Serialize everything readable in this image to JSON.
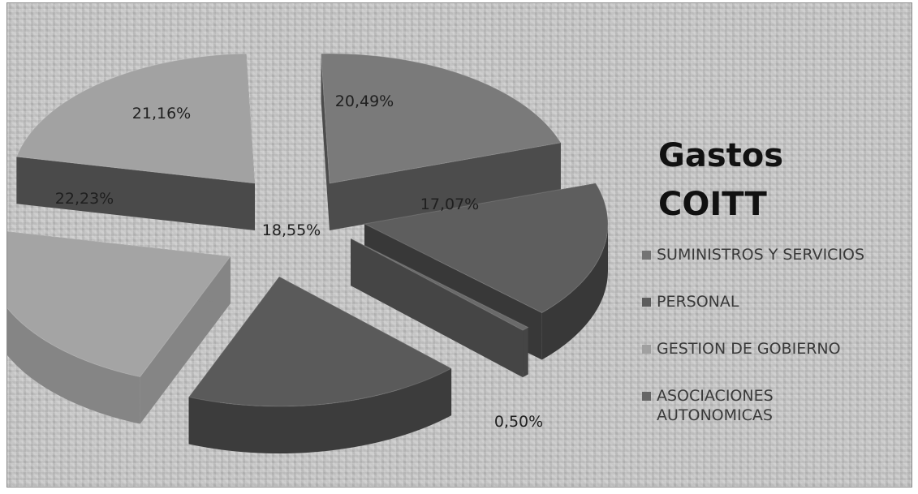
{
  "chart_data": {
    "type": "pie",
    "title_lines": [
      "Gastos",
      "COITT"
    ],
    "legend_position": "right",
    "slices": [
      {
        "label": "SUMINISTROS Y SERVICIOS",
        "value": 20.49,
        "value_label": "20,49%"
      },
      {
        "label": "",
        "value": 17.07,
        "value_label": "17,07%"
      },
      {
        "label": "ASOCIACIONES AUTONOMICAS",
        "value": 0.5,
        "value_label": "0,50%"
      },
      {
        "label": "PERSONAL",
        "value": 18.55,
        "value_label": "18,55%"
      },
      {
        "label": "",
        "value": 22.23,
        "value_label": "22,23%"
      },
      {
        "label": "GESTION DE GOBIERNO",
        "value": 21.16,
        "value_label": "21,16%"
      }
    ],
    "legend": [
      {
        "label": "SUMINISTROS Y SERVICIOS",
        "color": "#747474"
      },
      {
        "label": "PERSONAL",
        "color": "#5c5c5c"
      },
      {
        "label": "GESTION DE GOBIERNO",
        "color": "#a0a0a0"
      },
      {
        "label_lines": [
          "ASOCIACIONES",
          "AUTONOMICAS"
        ],
        "color": "#676767"
      }
    ]
  }
}
